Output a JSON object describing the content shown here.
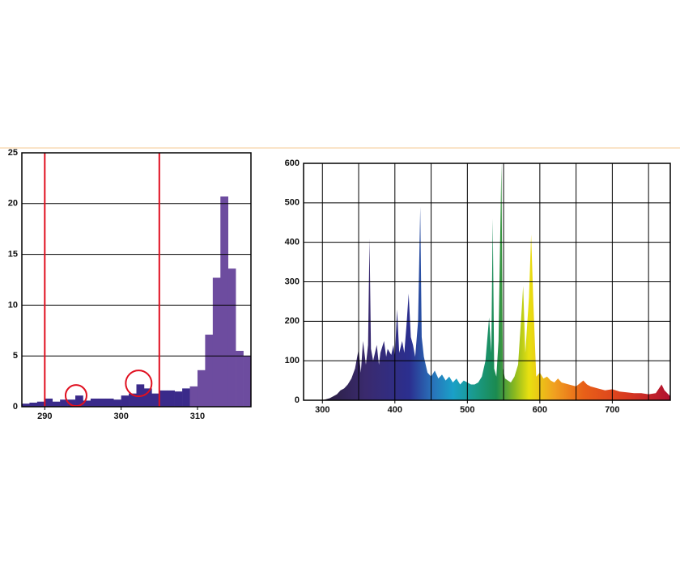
{
  "chart_data": [
    {
      "type": "histogram",
      "bins": [
        287,
        288,
        289,
        290,
        291,
        292,
        293,
        294,
        295,
        296,
        297,
        298,
        299,
        300,
        301,
        302,
        303,
        304,
        305,
        306,
        307,
        308,
        309,
        310,
        311,
        312,
        313,
        314,
        315,
        316,
        317
      ],
      "counts": [
        0.3,
        0.4,
        0.5,
        0.8,
        0.5,
        0.7,
        0.7,
        1.1,
        0.6,
        0.8,
        0.8,
        0.8,
        0.7,
        1.1,
        1.3,
        2.2,
        1.8,
        1.3,
        1.6,
        1.6,
        1.5,
        1.8,
        2.0,
        3.6,
        7.1,
        12.7,
        20.7,
        13.6,
        5.5,
        5.0
      ],
      "colors": [
        "#3a2a8a",
        "#3a2a8a",
        "#3a2a8a",
        "#3a2a8a",
        "#3a2a8a",
        "#3a2a8a",
        "#3a2a8a",
        "#3a2a8a",
        "#3a2a8a",
        "#3a2a8a",
        "#3a2a8a",
        "#3a2a8a",
        "#3a2a8a",
        "#3a2a8a",
        "#3a2a8a",
        "#3a2a8a",
        "#3a2a8a",
        "#3a2a8a",
        "#3a2a8a",
        "#3a2a8a",
        "#3a2a8a",
        "#3a2a8a",
        "#6d4c9f",
        "#6d4c9f",
        "#6d4c9f",
        "#6d4c9f",
        "#6d4c9f",
        "#6d4c9f",
        "#6d4c9f",
        "#6d4c9f"
      ],
      "xlim": [
        287,
        317
      ],
      "ylim": [
        0,
        25
      ],
      "xticks": [
        290,
        300,
        310
      ],
      "yticks": [
        0,
        5,
        10,
        15,
        20,
        25
      ],
      "grid": true,
      "vlines": [
        290,
        305
      ],
      "vline_color": "#e01020",
      "highlights": [
        {
          "x": 294.1,
          "y": 1.1
        },
        {
          "x": 302.3,
          "y": 2.3
        }
      ],
      "highlight_color": "#e01020"
    },
    {
      "type": "area",
      "x": [
        300,
        310,
        315,
        320,
        325,
        330,
        335,
        340,
        345,
        350,
        353,
        356,
        360,
        363,
        365,
        367,
        370,
        375,
        378,
        380,
        385,
        388,
        390,
        395,
        398,
        400,
        403,
        406,
        410,
        413,
        416,
        419,
        422,
        425,
        428,
        432,
        435,
        437,
        440,
        445,
        450,
        455,
        460,
        465,
        470,
        475,
        480,
        485,
        490,
        495,
        500,
        505,
        510,
        515,
        520,
        525,
        530,
        533,
        535,
        537,
        540,
        543,
        545,
        547,
        549,
        552,
        556,
        560,
        565,
        570,
        575,
        577,
        580,
        585,
        588,
        591,
        595,
        600,
        605,
        610,
        615,
        620,
        625,
        630,
        640,
        650,
        660,
        665,
        670,
        680,
        690,
        700,
        710,
        720,
        730,
        740,
        750,
        760,
        768,
        772,
        780
      ],
      "values": [
        0,
        5,
        10,
        15,
        25,
        30,
        40,
        55,
        80,
        130,
        70,
        150,
        90,
        140,
        410,
        130,
        100,
        140,
        90,
        120,
        150,
        110,
        130,
        115,
        140,
        110,
        230,
        120,
        150,
        120,
        190,
        270,
        160,
        140,
        110,
        200,
        490,
        160,
        110,
        70,
        60,
        75,
        55,
        65,
        50,
        60,
        45,
        55,
        40,
        50,
        45,
        40,
        40,
        45,
        60,
        100,
        210,
        120,
        460,
        80,
        60,
        150,
        380,
        600,
        80,
        55,
        50,
        45,
        60,
        90,
        230,
        290,
        120,
        260,
        420,
        250,
        60,
        70,
        55,
        60,
        50,
        45,
        55,
        45,
        40,
        35,
        50,
        40,
        35,
        30,
        25,
        28,
        22,
        20,
        18,
        18,
        15,
        18,
        40,
        25,
        10
      ],
      "xlim": [
        274,
        780
      ],
      "ylim": [
        0,
        600
      ],
      "xticks": [
        300,
        400,
        500,
        600,
        700
      ],
      "yticks": [
        0,
        100,
        200,
        300,
        400,
        500,
        600
      ],
      "xgrid": [
        300,
        350,
        400,
        450,
        500,
        550,
        600,
        650,
        700,
        750
      ],
      "grid": true,
      "gradient": [
        {
          "x": 300,
          "color": "#2a1f3f"
        },
        {
          "x": 360,
          "color": "#3a2a6e"
        },
        {
          "x": 420,
          "color": "#2b2f8f"
        },
        {
          "x": 450,
          "color": "#2a6fb8"
        },
        {
          "x": 480,
          "color": "#1aa0c8"
        },
        {
          "x": 510,
          "color": "#1a9a8a"
        },
        {
          "x": 540,
          "color": "#1b8a50"
        },
        {
          "x": 565,
          "color": "#8ab820"
        },
        {
          "x": 585,
          "color": "#e8e010"
        },
        {
          "x": 620,
          "color": "#f0a020"
        },
        {
          "x": 660,
          "color": "#e86018"
        },
        {
          "x": 720,
          "color": "#d83a20"
        },
        {
          "x": 780,
          "color": "#b01030"
        }
      ]
    }
  ]
}
